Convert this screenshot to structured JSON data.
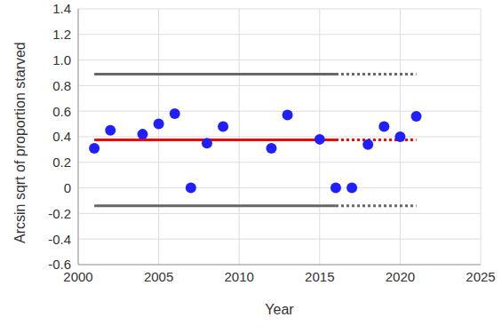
{
  "chart_data": {
    "type": "scatter",
    "x_label": "Year",
    "y_label": "Arcsin sqrt of proportion starved",
    "xlim": [
      2000,
      2025
    ],
    "xticks": [
      2000,
      2005,
      2010,
      2015,
      2020,
      2025
    ],
    "ylim": [
      -0.6,
      1.4
    ],
    "yticks": [
      -0.6,
      -0.4,
      -0.2,
      0,
      0.2,
      0.4,
      0.6,
      0.8,
      {
        "value": 1,
        "label": "1.0"
      },
      1.2,
      1.4
    ],
    "grid": true,
    "series": [
      {
        "type": "scatter",
        "marker": "circle",
        "color": "#1f1fff",
        "x": [
          2001,
          2002,
          2004,
          2005,
          2006,
          2007,
          2008,
          2009,
          2012,
          2013,
          2015,
          2016,
          2017,
          2018,
          2019,
          2020,
          2021
        ],
        "values": [
          0.31,
          0.45,
          0.42,
          0.5,
          0.58,
          0.0,
          0.35,
          0.48,
          0.31,
          0.57,
          0.38,
          0.0,
          0.0,
          0.34,
          0.48,
          0.4,
          0.56
        ]
      },
      {
        "type": "line",
        "line_style": "solid",
        "color": "#ff0000",
        "x": [
          2001,
          2016
        ],
        "values": [
          0.375,
          0.375
        ]
      },
      {
        "type": "line",
        "line_style": "dotted",
        "color": "#ff0000",
        "x": [
          2016,
          2021
        ],
        "values": [
          0.375,
          0.375
        ]
      },
      {
        "type": "line",
        "line_style": "solid",
        "color": "#666666",
        "x": [
          2001,
          2016
        ],
        "values": [
          0.89,
          0.89
        ]
      },
      {
        "type": "line",
        "line_style": "dotted",
        "color": "#666666",
        "x": [
          2016,
          2021
        ],
        "values": [
          0.89,
          0.89
        ]
      },
      {
        "type": "line",
        "line_style": "solid",
        "color": "#666666",
        "x": [
          2001,
          2016
        ],
        "values": [
          -0.14,
          -0.14
        ]
      },
      {
        "type": "line",
        "line_style": "dotted",
        "color": "#666666",
        "x": [
          2016,
          2021
        ],
        "values": [
          -0.14,
          -0.14
        ]
      }
    ]
  }
}
